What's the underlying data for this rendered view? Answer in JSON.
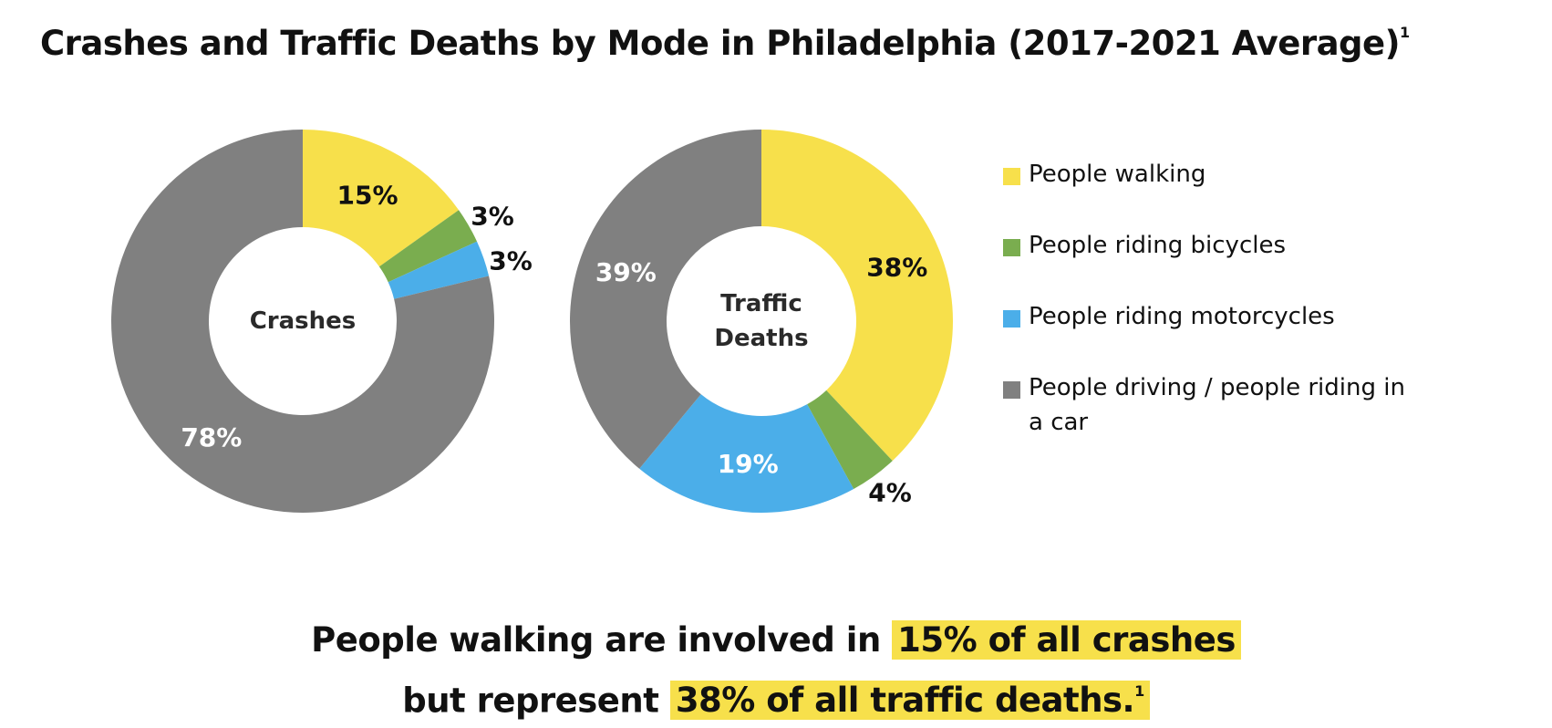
{
  "title": {
    "text": "Crashes and Traffic Deaths by Mode in Philadelphia (2017-2021 Average)",
    "footnote": "1"
  },
  "colors": {
    "walking": "#f7e04b",
    "bicycles": "#7aad4f",
    "motorcycles": "#4baee9",
    "driving": "#808080"
  },
  "legend": [
    {
      "label": "People walking",
      "color": "#f7e04b"
    },
    {
      "label": "People riding bicycles",
      "color": "#7aad4f"
    },
    {
      "label": "People riding motorcycles",
      "color": "#4baee9"
    },
    {
      "label": "People driving / people riding in a car",
      "color": "#808080"
    }
  ],
  "chart_data": [
    {
      "type": "pie",
      "donut": true,
      "center_label": "Crashes",
      "categories": [
        "People walking",
        "People riding bicycles",
        "People riding motorcycles",
        "People driving / people riding in a car"
      ],
      "values": [
        15,
        3,
        3,
        78
      ],
      "labels": [
        "15%",
        "3%",
        "3%",
        "78%"
      ],
      "colors": [
        "#f7e04b",
        "#7aad4f",
        "#4baee9",
        "#808080"
      ]
    },
    {
      "type": "pie",
      "donut": true,
      "center_label": "Traffic Deaths",
      "categories": [
        "People walking",
        "People riding bicycles",
        "People riding motorcycles",
        "People driving / people riding in a car"
      ],
      "values": [
        38,
        4,
        19,
        39
      ],
      "labels": [
        "38%",
        "4%",
        "19%",
        "39%"
      ],
      "colors": [
        "#f7e04b",
        "#7aad4f",
        "#4baee9",
        "#808080"
      ]
    }
  ],
  "caption": {
    "line1_plain": "People walking are involved in ",
    "line1_highlight": "15% of all crashes",
    "line2_plain": "but represent ",
    "line2_highlight": "38% of all traffic deaths.",
    "footnote": "1"
  }
}
